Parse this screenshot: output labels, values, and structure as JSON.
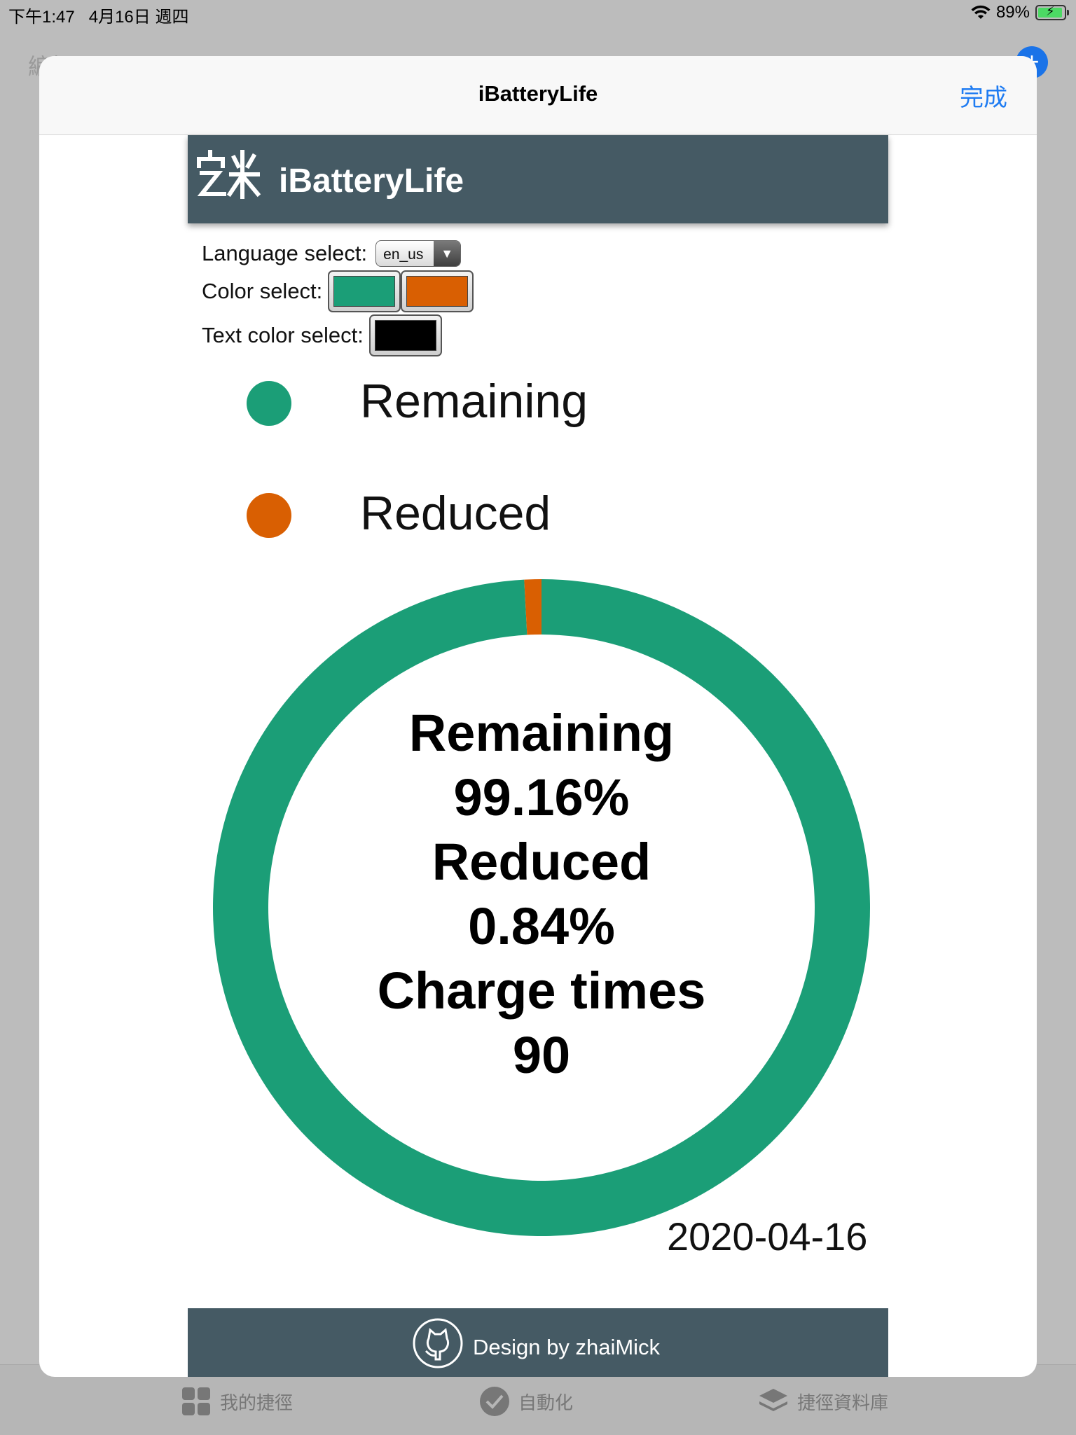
{
  "status_bar": {
    "time": "下午1:47",
    "date": "4月16日 週四",
    "battery": "89%"
  },
  "background": {
    "edit_label": "編輯",
    "plus_label": "+"
  },
  "tabbar": {
    "items": [
      {
        "label": "我的捷徑"
      },
      {
        "label": "自動化"
      },
      {
        "label": "捷徑資料庫"
      }
    ]
  },
  "modal": {
    "title": "iBatteryLife",
    "done_label": "完成"
  },
  "app": {
    "title": "iBatteryLife",
    "language_label": "Language select:",
    "language_value": "en_us",
    "color_label": "Color select:",
    "text_color_label": "Text color select:",
    "colors": {
      "remaining": "#1b9e77",
      "reduced": "#d95f02",
      "text": "#000000"
    },
    "legend": [
      {
        "label": "Remaining"
      },
      {
        "label": "Reduced"
      }
    ],
    "center": {
      "remaining_label": "Remaining",
      "remaining_value": "99.16%",
      "reduced_label": "Reduced",
      "reduced_value": "0.84%",
      "charge_label": "Charge times",
      "charge_value": "90"
    },
    "date": "2020-04-16",
    "footer": "Design by zhaiMick"
  },
  "chart_data": {
    "type": "pie",
    "variant": "donut",
    "categories": [
      "Remaining",
      "Reduced"
    ],
    "values": [
      99.16,
      0.84
    ],
    "colors": [
      "#1b9e77",
      "#d95f02"
    ],
    "title": "",
    "annotations": [
      "Remaining",
      "99.16%",
      "Reduced",
      "0.84%",
      "Charge times",
      "90"
    ]
  }
}
